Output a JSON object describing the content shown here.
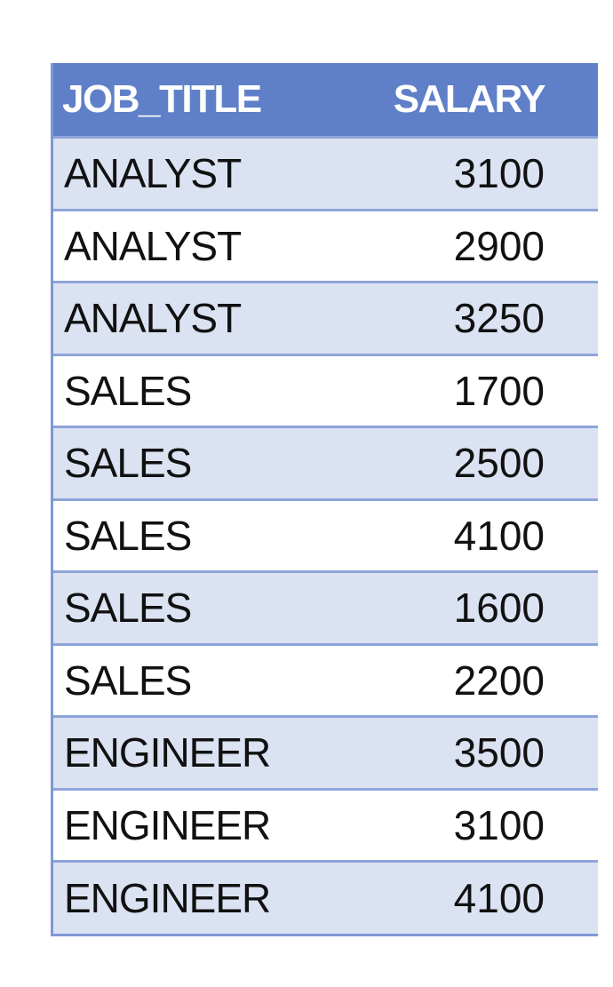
{
  "table": {
    "headers": [
      "JOB_TITLE",
      "SALARY"
    ],
    "rows": [
      [
        "ANALYST",
        "3100"
      ],
      [
        "ANALYST",
        "2900"
      ],
      [
        "ANALYST",
        "3250"
      ],
      [
        "SALES",
        "1700"
      ],
      [
        "SALES",
        "2500"
      ],
      [
        "SALES",
        "4100"
      ],
      [
        "SALES",
        "1600"
      ],
      [
        "SALES",
        "2200"
      ],
      [
        "ENGINEER",
        "3500"
      ],
      [
        "ENGINEER",
        "3100"
      ],
      [
        "ENGINEER",
        "4100"
      ]
    ]
  },
  "colors": {
    "header_bg": "#5f80c8",
    "header_text": "#ffffff",
    "band_row": "#dbe2f2",
    "plain_row": "#ffffff",
    "grid_line": "#8ea5da"
  }
}
